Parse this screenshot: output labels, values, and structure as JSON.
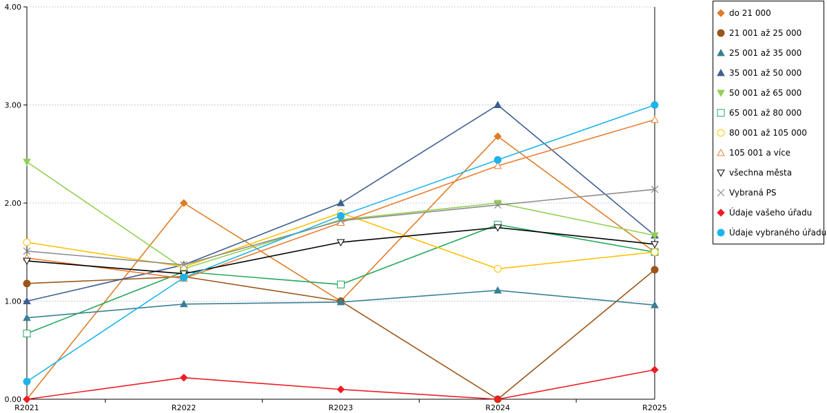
{
  "chart_data": {
    "type": "line",
    "title": "",
    "xlabel": "",
    "ylabel": "",
    "ylim": [
      0,
      4
    ],
    "yticks": [
      "0.00",
      "1.00",
      "2.00",
      "3.00",
      "4.00"
    ],
    "categories": [
      "R2021",
      "R2022",
      "R2023",
      "R2024",
      "R2025"
    ],
    "legend_position": "right",
    "grid": "horizontal dotted",
    "series": [
      {
        "name": "do 21 000",
        "color": "#e07b24",
        "marker": "diamond",
        "filled": true,
        "values": [
          0.0,
          2.0,
          1.0,
          2.68,
          1.5
        ]
      },
      {
        "name": "21 001 až 25 000",
        "color": "#9c5518",
        "marker": "circle",
        "filled": true,
        "values": [
          1.18,
          1.25,
          1.0,
          0.0,
          1.32
        ]
      },
      {
        "name": "25 001 až 35 000",
        "color": "#3a7f94",
        "marker": "triangle-up",
        "filled": true,
        "values": [
          0.83,
          0.97,
          0.99,
          1.11,
          0.96
        ]
      },
      {
        "name": "35 001 až 50 000",
        "color": "#3d5f8f",
        "marker": "triangle-up",
        "filled": true,
        "values": [
          1.0,
          1.37,
          2.0,
          3.0,
          1.67
        ]
      },
      {
        "name": "50 001 až 65 000",
        "color": "#92d050",
        "marker": "triangle-down",
        "filled": true,
        "values": [
          2.42,
          1.33,
          1.83,
          2.0,
          1.67
        ]
      },
      {
        "name": "65 001 až 80 000",
        "color": "#22a85a",
        "marker": "square",
        "filled": false,
        "values": [
          0.67,
          1.3,
          1.17,
          1.78,
          1.5
        ]
      },
      {
        "name": "80 001 až 105 000",
        "color": "#ffc000",
        "marker": "circle",
        "filled": false,
        "values": [
          1.6,
          1.35,
          1.9,
          1.33,
          1.5
        ]
      },
      {
        "name": "105 001 a více",
        "color": "#ed7d31",
        "marker": "triangle-up",
        "filled": false,
        "values": [
          1.44,
          1.23,
          1.8,
          2.38,
          2.85
        ]
      },
      {
        "name": "všechna města",
        "color": "#000000",
        "marker": "triangle-down",
        "filled": false,
        "values": [
          1.41,
          1.28,
          1.6,
          1.75,
          1.58
        ]
      },
      {
        "name": "Vybraná PS",
        "color": "#8c8c8c",
        "marker": "x",
        "filled": false,
        "values": [
          1.51,
          1.37,
          1.82,
          1.98,
          2.14
        ]
      },
      {
        "name": "Údaje vašeho úřadu",
        "color": "#ee1c25",
        "marker": "diamond",
        "filled": true,
        "values": [
          0.0,
          0.22,
          0.1,
          0.0,
          0.3
        ]
      },
      {
        "name": "Údaje vybraného úřadu",
        "color": "#1eb4ea",
        "marker": "circle",
        "filled": true,
        "values": [
          0.18,
          1.24,
          1.87,
          2.44,
          3.0
        ]
      }
    ]
  }
}
